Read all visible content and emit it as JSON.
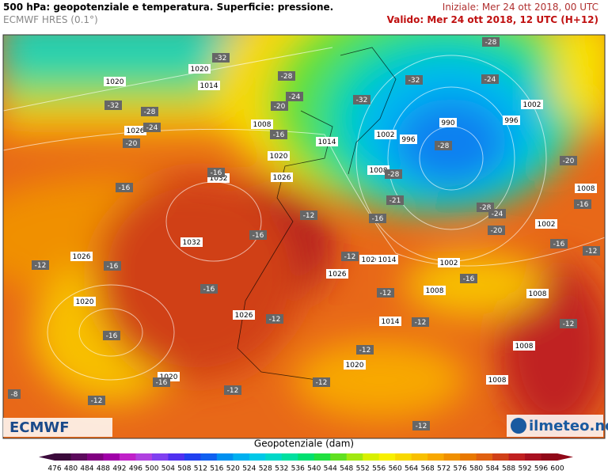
{
  "header": {
    "title": "500 hPa: geopotenziale e temperatura. Superficie: pressione.",
    "model": "ECMWF HRES (0.1°)",
    "initial": "Iniziale: Mer 24 ott 2018, 00 UTC",
    "valid": "Valido: Mer 24 ott 2018, 12 UTC (H+12)"
  },
  "pressure_labels": [
    "1020",
    "1020",
    "1014",
    "1026",
    "1008",
    "1020",
    "1032",
    "1026",
    "1014",
    "1002",
    "996",
    "990",
    "1002",
    "996",
    "1008",
    "1002",
    "1008",
    "1032",
    "1026",
    "1020",
    "1026",
    "1020",
    "1014",
    "1002",
    "1008",
    "1008",
    "1026",
    "1014",
    "1008",
    "1020",
    "1020",
    "1008"
  ],
  "temperature_labels": [
    "-32",
    "-32",
    "-28",
    "-28",
    "-24",
    "-20",
    "-32",
    "-28",
    "-32",
    "-24",
    "-28",
    "-28",
    "-24",
    "-20",
    "-16",
    "-16",
    "-16",
    "-21",
    "-16",
    "-28",
    "-24",
    "-20",
    "-20",
    "-16",
    "-12",
    "-16",
    "-12",
    "-12",
    "-16",
    "-12",
    "-16",
    "-16",
    "-12",
    "-16",
    "-12",
    "-12",
    "-16",
    "-12",
    "-12",
    "-16",
    "-12",
    "-12",
    "-8",
    "-12",
    "-12"
  ],
  "logos": {
    "left": "ECMWF",
    "right": "ilmeteo.net"
  },
  "colorbar": {
    "title": "Geopotenziale (dam)",
    "ticks": [
      "476",
      "480",
      "484",
      "488",
      "492",
      "496",
      "500",
      "504",
      "508",
      "512",
      "516",
      "520",
      "524",
      "528",
      "532",
      "536",
      "540",
      "544",
      "548",
      "552",
      "556",
      "560",
      "564",
      "568",
      "572",
      "576",
      "580",
      "584",
      "588",
      "592",
      "596",
      "600"
    ],
    "colors": [
      "#3b0a3b",
      "#5c0a5c",
      "#800080",
      "#a000a8",
      "#c020c8",
      "#b040e0",
      "#8040f0",
      "#5030f0",
      "#2040f0",
      "#1060f0",
      "#0090f0",
      "#00b0f0",
      "#00c8e8",
      "#00d8c8",
      "#00e0a0",
      "#00e070",
      "#20e040",
      "#60e020",
      "#a0e810",
      "#d8f000",
      "#f8f000",
      "#f8d800",
      "#f8c000",
      "#f8a800",
      "#f09000",
      "#e87800",
      "#e06010",
      "#d04018",
      "#c02020",
      "#a81020",
      "#900818"
    ]
  }
}
